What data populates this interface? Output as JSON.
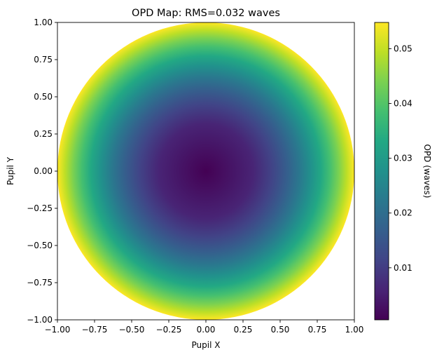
{
  "chart_data": {
    "type": "heatmap",
    "title": "OPD Map: RMS=0.032 waves",
    "xlabel": "Pupil X",
    "ylabel": "Pupil Y",
    "colorbar_label": "OPD (waves)",
    "colormap": "viridis",
    "xlim": [
      -1.0,
      1.0
    ],
    "ylim": [
      -1.0,
      1.0
    ],
    "x_ticks": [
      "−1.00",
      "−0.75",
      "−0.50",
      "−0.25",
      "0.00",
      "0.25",
      "0.50",
      "0.75",
      "1.00"
    ],
    "y_ticks": [
      "1.00",
      "0.75",
      "0.50",
      "0.25",
      "0.00",
      "−0.25",
      "−0.50",
      "−0.75",
      "−1.00"
    ],
    "colorbar_range": [
      0.0005,
      0.0548
    ],
    "colorbar_ticks": [
      {
        "value": 0.01,
        "label": "0.01"
      },
      {
        "value": 0.02,
        "label": "0.02"
      },
      {
        "value": 0.03,
        "label": "0.03"
      },
      {
        "value": 0.04,
        "label": "0.04"
      },
      {
        "value": 0.05,
        "label": "0.05"
      }
    ],
    "field": {
      "shape": "circular-pupil",
      "function": "quadratic-radial",
      "center_value": 0.0005,
      "edge_value": 0.0548,
      "pupil_radius": 1.0
    },
    "grid": false
  }
}
